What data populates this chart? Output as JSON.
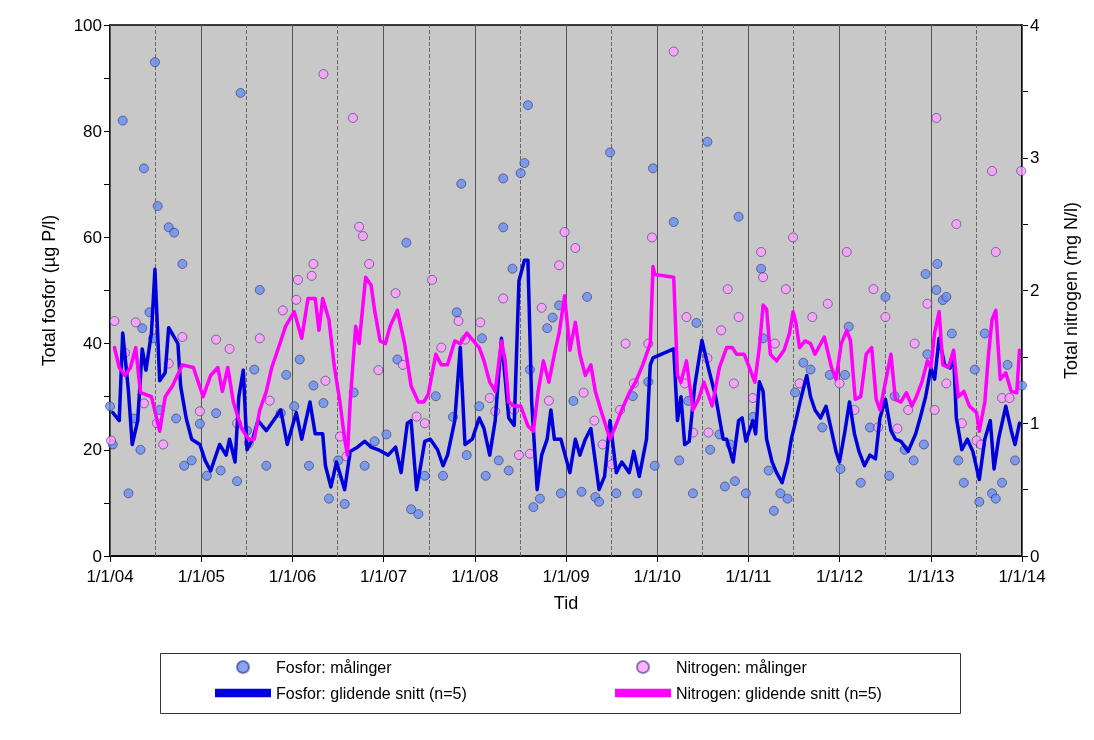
{
  "chart_data": {
    "type": "scatter",
    "xlabel": "Tid",
    "ylabel": "Total fosfor (µg P/l)",
    "y2label": "Total nitrogen (mg N/l)",
    "xlim": [
      "2004-01-01",
      "2014-01-01"
    ],
    "xticks": [
      {
        "value": "2004-01-01",
        "label": "1/1/04"
      },
      {
        "value": "2005-01-01",
        "label": "1/1/05"
      },
      {
        "value": "2006-01-01",
        "label": "1/1/06"
      },
      {
        "value": "2007-01-01",
        "label": "1/1/07"
      },
      {
        "value": "2008-01-01",
        "label": "1/1/08"
      },
      {
        "value": "2009-01-01",
        "label": "1/1/09"
      },
      {
        "value": "2010-01-01",
        "label": "1/1/10"
      },
      {
        "value": "2011-01-01",
        "label": "1/1/11"
      },
      {
        "value": "2012-01-01",
        "label": "1/1/12"
      },
      {
        "value": "2013-01-01",
        "label": "1/1/13"
      },
      {
        "value": "2014-01-01",
        "label": "1/1/14"
      }
    ],
    "ylim": [
      0,
      100
    ],
    "yticks": [
      0,
      {
        "value": 10,
        "label": null
      },
      20,
      {
        "value": 30,
        "label": null
      },
      40,
      {
        "value": 50,
        "label": null
      },
      60,
      {
        "value": 70,
        "label": null
      },
      80,
      {
        "value": 90,
        "label": null
      },
      100
    ],
    "y2lim": [
      0,
      4
    ],
    "y2ticks": [
      0,
      {
        "value": 0.5,
        "label": null
      },
      1,
      {
        "value": 1.5,
        "label": null
      },
      2,
      {
        "value": 2.5,
        "label": null
      },
      3,
      {
        "value": 3.5,
        "label": null
      },
      4
    ],
    "grid": "x",
    "legend": "bottom",
    "ref_lines": [
      {
        "axis": "x",
        "value": "2004-07-01",
        "line_style": "dashed",
        "color": "#666666"
      },
      {
        "axis": "x",
        "value": "2005-07-01",
        "line_style": "dashed",
        "color": "#666666"
      },
      {
        "axis": "x",
        "value": "2006-07-01",
        "line_style": "dashed",
        "color": "#666666"
      },
      {
        "axis": "x",
        "value": "2007-07-01",
        "line_style": "dashed",
        "color": "#666666"
      },
      {
        "axis": "x",
        "value": "2008-07-01",
        "line_style": "dashed",
        "color": "#666666"
      },
      {
        "axis": "x",
        "value": "2009-07-01",
        "line_style": "dashed",
        "color": "#666666"
      },
      {
        "axis": "x",
        "value": "2010-07-01",
        "line_style": "dashed",
        "color": "#666666"
      },
      {
        "axis": "x",
        "value": "2011-07-01",
        "line_style": "dashed",
        "color": "#666666"
      },
      {
        "axis": "x",
        "value": "2012-07-01",
        "line_style": "dashed",
        "color": "#666666"
      },
      {
        "axis": "x",
        "value": "2013-07-01",
        "line_style": "dashed",
        "color": "#666666"
      }
    ],
    "series": [
      {
        "name": "Fosfor: målinger",
        "marker": "circle",
        "color": "#6a8ff0",
        "x": [
          "2004-01-01",
          "2004-01-12",
          "2004-02-21",
          "2004-03-15",
          "2004-04-06",
          "2004-05-02",
          "2004-05-09",
          "2004-05-16",
          "2004-06-07",
          "2004-06-22",
          "2004-06-29",
          "2004-07-10",
          "2004-07-18",
          "2004-08-23",
          "2004-09-14",
          "2004-09-22",
          "2004-10-17",
          "2004-10-24",
          "2004-11-23",
          "2004-12-26",
          "2005-01-23",
          "2005-03-01",
          "2005-03-19",
          "2005-05-24",
          "2005-06-07",
          "2005-07-03",
          "2005-08-01",
          "2005-08-23",
          "2005-09-18",
          "2005-11-15",
          "2005-12-07",
          "2006-01-08",
          "2006-01-30",
          "2006-03-08",
          "2006-03-26",
          "2006-05-05",
          "2006-05-27",
          "2006-07-03",
          "2006-07-29",
          "2006-09-03",
          "2006-10-17",
          "2006-11-26",
          "2007-01-12",
          "2007-02-25",
          "2007-04-02",
          "2007-04-21",
          "2007-05-20",
          "2007-06-15",
          "2007-07-29",
          "2007-08-27",
          "2007-10-06",
          "2007-10-21",
          "2007-11-08",
          "2007-11-30",
          "2008-01-19",
          "2008-01-30",
          "2008-02-14",
          "2008-04-06",
          "2008-04-24",
          "2008-04-24",
          "2008-05-16",
          "2008-05-31",
          "2008-07-03",
          "2008-07-18",
          "2008-08-01",
          "2008-08-09",
          "2008-08-23",
          "2008-09-18",
          "2008-10-17",
          "2008-11-08",
          "2008-12-04",
          "2008-12-11",
          "2009-01-30",
          "2009-03-04",
          "2009-03-26",
          "2009-04-28",
          "2009-05-13",
          "2009-06-26",
          "2009-07-21",
          "2009-09-25",
          "2009-10-13",
          "2009-11-26",
          "2009-12-15",
          "2009-12-22",
          "2010-03-08",
          "2010-03-30",
          "2010-05-05",
          "2010-05-24",
          "2010-06-07",
          "2010-07-21",
          "2010-08-01",
          "2010-09-07",
          "2010-09-29",
          "2010-10-21",
          "2010-11-08",
          "2010-11-23",
          "2010-12-22",
          "2011-01-19",
          "2011-02-21",
          "2011-03-01",
          "2011-03-23",
          "2011-04-13",
          "2011-05-09",
          "2011-06-07",
          "2011-07-07",
          "2011-08-09",
          "2011-09-07",
          "2011-10-24",
          "2011-11-23",
          "2012-01-05",
          "2012-01-23",
          "2012-02-07",
          "2012-03-26",
          "2012-05-02",
          "2012-07-03",
          "2012-07-18",
          "2012-08-09",
          "2012-09-18",
          "2012-10-24",
          "2012-12-04",
          "2012-12-11",
          "2012-12-18",
          "2013-01-23",
          "2013-01-27",
          "2013-02-18",
          "2013-03-04",
          "2013-03-26",
          "2013-04-21",
          "2013-05-13",
          "2013-06-26",
          "2013-07-14",
          "2013-08-05",
          "2013-09-03",
          "2013-09-18",
          "2013-10-13",
          "2013-11-04",
          "2013-12-04",
          "2014-01-01"
        ],
        "values": [
          28.2,
          21,
          82,
          11.8,
          25.9,
          20,
          42.9,
          73,
          45.9,
          41,
          93,
          65.9,
          27.5,
          61.9,
          60.9,
          25.9,
          55,
          17,
          18,
          24.9,
          15.1,
          26.9,
          16.1,
          14.1,
          87.2,
          23.6,
          35.1,
          50.1,
          17,
          26.9,
          34.1,
          28.2,
          37,
          17,
          32.1,
          28.8,
          10.8,
          18,
          9.8,
          30.8,
          17,
          21.6,
          22.9,
          37,
          59,
          8.8,
          7.9,
          15.1,
          30.1,
          15.1,
          26.2,
          45.9,
          70.1,
          19,
          28.2,
          41,
          15.1,
          18,
          71.1,
          61.9,
          16.1,
          54.1,
          72.1,
          74,
          84.9,
          35.1,
          9.2,
          10.8,
          42.9,
          44.9,
          47.2,
          11.8,
          29.2,
          12.1,
          48.8,
          11.1,
          10.2,
          76,
          11.8,
          30.1,
          11.8,
          32.8,
          73,
          17,
          62.9,
          18,
          29.2,
          11.8,
          43.9,
          78,
          20,
          22.9,
          13.1,
          21,
          14.1,
          63.9,
          11.8,
          26.2,
          54.1,
          41,
          16.1,
          8.5,
          11.8,
          10.8,
          30.8,
          36.4,
          35.1,
          24.2,
          34.1,
          16.4,
          34.1,
          43.2,
          13.8,
          24.2,
          48.8,
          15.1,
          30.1,
          20,
          18,
          21,
          53.1,
          38,
          50.1,
          55,
          48.2,
          48.8,
          41.9,
          18,
          13.8,
          35.1,
          10.2,
          41.9,
          11.8,
          10.8,
          13.8,
          36,
          18,
          32.1
        ]
      },
      {
        "name": "Nitrogen: målinger",
        "marker": "circle",
        "color": "#ff9cff",
        "axis": "y2",
        "x": [
          "2004-01-05",
          "2004-01-19",
          "2004-03-01",
          "2004-04-13",
          "2004-05-16",
          "2004-07-07",
          "2004-08-01",
          "2004-08-23",
          "2004-10-17",
          "2004-12-26",
          "2005-03-01",
          "2005-04-24",
          "2005-05-24",
          "2005-07-10",
          "2005-08-23",
          "2005-10-02",
          "2005-11-23",
          "2006-01-16",
          "2006-01-23",
          "2006-03-19",
          "2006-03-26",
          "2006-05-05",
          "2006-05-13",
          "2006-07-10",
          "2006-08-05",
          "2006-08-31",
          "2006-09-25",
          "2006-10-10",
          "2006-11-04",
          "2006-12-11",
          "2007-02-18",
          "2007-03-19",
          "2007-05-13",
          "2007-06-15",
          "2007-07-14",
          "2007-08-20",
          "2007-10-28",
          "2007-11-23",
          "2008-01-23",
          "2008-03-01",
          "2008-03-23",
          "2008-04-24",
          "2008-06-07",
          "2008-06-26",
          "2008-08-09",
          "2008-09-25",
          "2008-10-24",
          "2008-12-04",
          "2008-12-26",
          "2009-02-07",
          "2009-03-12",
          "2009-04-24",
          "2009-05-27",
          "2009-07-03",
          "2009-08-05",
          "2009-08-27",
          "2009-09-29",
          "2009-11-26",
          "2009-12-11",
          "2010-03-08",
          "2010-04-21",
          "2010-04-28",
          "2010-05-24",
          "2010-07-21",
          "2010-07-25",
          "2010-09-14",
          "2010-10-10",
          "2010-11-04",
          "2010-11-23",
          "2011-01-19",
          "2011-02-21",
          "2011-03-01",
          "2011-04-17",
          "2011-05-31",
          "2011-06-29",
          "2011-07-25",
          "2011-09-14",
          "2011-11-15",
          "2012-01-01",
          "2012-01-30",
          "2012-03-01",
          "2012-05-16",
          "2012-06-04",
          "2012-07-03",
          "2012-08-20",
          "2012-10-02",
          "2012-10-28",
          "2012-12-18",
          "2013-01-16",
          "2013-01-23",
          "2013-03-04",
          "2013-04-13",
          "2013-05-05",
          "2013-07-03",
          "2013-07-21",
          "2013-09-03",
          "2013-09-18",
          "2013-10-13",
          "2013-11-12",
          "2013-12-29"
        ],
        "values": [
          0.87,
          1.77,
          1.53,
          1.76,
          1.15,
          1.0,
          0.84,
          1.45,
          1.65,
          1.09,
          1.63,
          1.56,
          1.0,
          0.85,
          1.64,
          1.17,
          1.85,
          1.93,
          2.08,
          2.11,
          2.2,
          3.63,
          1.32,
          0.9,
          0.75,
          3.3,
          2.48,
          2.41,
          2.2,
          1.4,
          1.98,
          1.44,
          1.05,
          1.0,
          2.08,
          1.57,
          1.77,
          1.63,
          1.76,
          1.19,
          1.09,
          1.94,
          1.1,
          0.76,
          0.77,
          1.87,
          1.17,
          2.19,
          2.44,
          2.32,
          1.23,
          1.02,
          0.84,
          0.69,
          1.1,
          1.6,
          1.3,
          1.6,
          2.4,
          3.8,
          1.3,
          1.8,
          0.93,
          1.49,
          0.93,
          1.7,
          2.01,
          1.3,
          1.8,
          1.19,
          2.29,
          2.1,
          1.6,
          2.01,
          2.4,
          1.3,
          1.8,
          1.9,
          1.3,
          2.29,
          1.1,
          2.01,
          0.97,
          1.8,
          0.96,
          1.1,
          1.6,
          1.9,
          1.1,
          3.3,
          1.3,
          2.5,
          1.0,
          0.87,
          0.84,
          2.9,
          2.29,
          1.19,
          1.19,
          2.9
        ]
      },
      {
        "name": "Fosfor: glidende snitt (n=5)",
        "type": "line",
        "marker": "none",
        "color": "#0000dd",
        "x": [
          "2004-01-12",
          "2004-02-07",
          "2004-02-21",
          "2004-03-15",
          "2004-03-30",
          "2004-04-21",
          "2004-05-09",
          "2004-05-24",
          "2004-06-15",
          "2004-06-29",
          "2004-07-18",
          "2004-08-09",
          "2004-08-23",
          "2004-09-29",
          "2004-10-10",
          "2004-11-01",
          "2004-11-23",
          "2004-12-26",
          "2005-01-16",
          "2005-02-07",
          "2005-03-15",
          "2005-04-10",
          "2005-04-24",
          "2005-05-16",
          "2005-05-31",
          "2005-06-18",
          "2005-07-03",
          "2005-07-25",
          "2005-08-16",
          "2005-09-18",
          "2005-10-17",
          "2005-11-15",
          "2005-12-11",
          "2006-01-16",
          "2006-02-07",
          "2006-03-12",
          "2006-04-02",
          "2006-05-02",
          "2006-05-13",
          "2006-06-04",
          "2006-06-26",
          "2006-07-29",
          "2006-08-20",
          "2006-09-18",
          "2006-10-17",
          "2006-11-12",
          "2006-12-11",
          "2007-01-19",
          "2007-02-18",
          "2007-03-12",
          "2007-04-06",
          "2007-04-21",
          "2007-05-13",
          "2007-06-15",
          "2007-07-07",
          "2007-08-05",
          "2007-08-27",
          "2007-09-14",
          "2007-10-13",
          "2007-11-04",
          "2007-11-08",
          "2007-11-23",
          "2007-12-22",
          "2008-01-19",
          "2008-02-07",
          "2008-03-01",
          "2008-03-23",
          "2008-04-17",
          "2008-05-02",
          "2008-05-16",
          "2008-06-07",
          "2008-06-26",
          "2008-07-18",
          "2008-08-01",
          "2008-08-16",
          "2008-09-07",
          "2008-09-25",
          "2008-10-17",
          "2008-11-01",
          "2008-11-15",
          "2008-12-11",
          "2009-01-01",
          "2009-01-16",
          "2009-02-07",
          "2009-02-25",
          "2009-03-19",
          "2009-04-10",
          "2009-05-13",
          "2009-06-04",
          "2009-06-26",
          "2009-07-21",
          "2009-08-12",
          "2009-09-11",
          "2009-09-29",
          "2009-10-21",
          "2009-11-19",
          "2009-12-04",
          "2009-12-15",
          "2010-03-08",
          "2010-03-23",
          "2010-04-06",
          "2010-04-21",
          "2010-05-09",
          "2010-05-31",
          "2010-06-29",
          "2010-07-25",
          "2010-08-23",
          "2010-09-22",
          "2010-10-06",
          "2010-11-01",
          "2010-11-23",
          "2010-12-07",
          "2010-12-22",
          "2011-01-05",
          "2011-01-19",
          "2011-01-30",
          "2011-02-14",
          "2011-03-01",
          "2011-03-15",
          "2011-04-06",
          "2011-04-24",
          "2011-05-16",
          "2011-06-07",
          "2011-06-22",
          "2011-07-10",
          "2011-08-01",
          "2011-08-23",
          "2011-09-07",
          "2011-09-25",
          "2011-10-17",
          "2011-11-08",
          "2011-11-30",
          "2011-12-18",
          "2012-01-01",
          "2012-01-23",
          "2012-02-10",
          "2012-03-01",
          "2012-03-19",
          "2012-04-10",
          "2012-05-02",
          "2012-05-24",
          "2012-06-11",
          "2012-07-03",
          "2012-07-25",
          "2012-08-12",
          "2012-09-03",
          "2012-10-02",
          "2012-11-01",
          "2012-11-19",
          "2012-12-11",
          "2013-01-01",
          "2013-01-16",
          "2013-02-03",
          "2013-02-25",
          "2013-03-19",
          "2013-04-02",
          "2013-04-13",
          "2013-05-05",
          "2013-05-27",
          "2013-06-18",
          "2013-07-14",
          "2013-08-05",
          "2013-08-27",
          "2013-09-11",
          "2013-09-29",
          "2013-10-28",
          "2013-11-19",
          "2013-12-04",
          "2013-12-22"
        ],
        "values": [
          27,
          25.5,
          42,
          31,
          21,
          25.5,
          39,
          35,
          42,
          54,
          33,
          34.5,
          43,
          40,
          32,
          26,
          22,
          21,
          18,
          16,
          21,
          19,
          22,
          17.7,
          30,
          35,
          20,
          22,
          25.5,
          23.6,
          25.5,
          27.5,
          21,
          27,
          22,
          29,
          23,
          23,
          17,
          13,
          17.7,
          12.5,
          19.7,
          20.5,
          21.6,
          20.5,
          20,
          19,
          20.5,
          15.7,
          25,
          25.5,
          12.5,
          21.6,
          22,
          20,
          17,
          19,
          25.5,
          39.3,
          35,
          21,
          22,
          26,
          24,
          19,
          25.5,
          41,
          33.3,
          26,
          24.6,
          51.8,
          55.7,
          55.7,
          29,
          12.5,
          19,
          22,
          27.5,
          22,
          22,
          18.3,
          15.7,
          22,
          19,
          22,
          24,
          12.5,
          15,
          25.5,
          15.7,
          17.7,
          15.7,
          19.7,
          15,
          22,
          36,
          37.3,
          39,
          25.5,
          30,
          21,
          21.6,
          32,
          40.6,
          35.4,
          30,
          22,
          22,
          17.7,
          25.5,
          26,
          21.6,
          23.6,
          25.5,
          23,
          32.8,
          31,
          22,
          17.7,
          15.7,
          13.8,
          17.7,
          22,
          25.5,
          30,
          34,
          30,
          27.5,
          26,
          28.2,
          23.6,
          19.7,
          17.7,
          23.6,
          29,
          23,
          19.7,
          17,
          19,
          18.3,
          26,
          29.5,
          23.6,
          22,
          21.6,
          19.7,
          23,
          26,
          30,
          35.4,
          33.3,
          41,
          36,
          35.4,
          38,
          26,
          20,
          22,
          19.7,
          14.4,
          22,
          25.5,
          16.4,
          22,
          28.2,
          23.6,
          21,
          25
        ]
      },
      {
        "name": "Nitrogen: glidende snitt (n=5)",
        "type": "line",
        "marker": "none",
        "color": "#ff00ff",
        "axis": "y2",
        "x": [
          "2004-01-19",
          "2004-02-07",
          "2004-03-01",
          "2004-03-23",
          "2004-04-13",
          "2004-05-02",
          "2004-06-15",
          "2004-07-18",
          "2004-08-09",
          "2004-09-07",
          "2004-10-17",
          "2004-11-30",
          "2005-01-08",
          "2005-02-07",
          "2005-03-08",
          "2005-03-26",
          "2005-04-17",
          "2005-05-09",
          "2005-06-11",
          "2005-07-10",
          "2005-08-01",
          "2005-08-23",
          "2005-09-18",
          "2005-10-10",
          "2005-11-15",
          "2005-12-04",
          "2006-01-08",
          "2006-02-07",
          "2006-03-04",
          "2006-04-02",
          "2006-04-17",
          "2006-05-02",
          "2006-05-27",
          "2006-06-18",
          "2006-07-10",
          "2006-07-29",
          "2006-08-09",
          "2006-08-20",
          "2006-09-11",
          "2006-09-25",
          "2006-10-21",
          "2006-11-12",
          "2006-11-26",
          "2006-12-18",
          "2007-01-08",
          "2007-01-27",
          "2007-02-25",
          "2007-03-26",
          "2007-04-21",
          "2007-05-20",
          "2007-06-11",
          "2007-06-29",
          "2007-07-29",
          "2007-08-20",
          "2007-09-14",
          "2007-10-13",
          "2007-11-04",
          "2007-11-30",
          "2008-01-05",
          "2008-01-19",
          "2008-02-07",
          "2008-03-01",
          "2008-03-23",
          "2008-04-17",
          "2008-05-02",
          "2008-05-16",
          "2008-06-07",
          "2008-07-03",
          "2008-08-01",
          "2008-08-23",
          "2008-09-11",
          "2008-10-02",
          "2008-10-24",
          "2008-11-15",
          "2008-12-04",
          "2008-12-26",
          "2009-01-16",
          "2009-02-07",
          "2009-02-25",
          "2009-03-19",
          "2009-04-10",
          "2009-04-28",
          "2009-05-20",
          "2009-06-26",
          "2009-07-14",
          "2009-08-12",
          "2009-09-11",
          "2009-10-06",
          "2009-11-04",
          "2009-12-04",
          "2009-12-15",
          "2009-12-22",
          "2010-03-08",
          "2010-03-23",
          "2010-04-06",
          "2010-04-28",
          "2010-05-24",
          "2010-06-15",
          "2010-07-07",
          "2010-08-09",
          "2010-09-07",
          "2010-10-06",
          "2010-10-28",
          "2010-11-15",
          "2010-12-15",
          "2011-01-05",
          "2011-01-27",
          "2011-02-14",
          "2011-03-01",
          "2011-03-15",
          "2011-03-30",
          "2011-04-24",
          "2011-05-24",
          "2011-06-15",
          "2011-06-29",
          "2011-07-10",
          "2011-07-25",
          "2011-08-16",
          "2011-09-07",
          "2011-09-25",
          "2011-11-01",
          "2011-11-30",
          "2011-12-18",
          "2012-01-08",
          "2012-01-30",
          "2012-02-14",
          "2012-03-04",
          "2012-03-26",
          "2012-04-17",
          "2012-05-09",
          "2012-05-27",
          "2012-06-11",
          "2012-07-03",
          "2012-07-25",
          "2012-08-12",
          "2012-09-03",
          "2012-09-25",
          "2012-10-17",
          "2012-11-04",
          "2012-11-26",
          "2012-12-18",
          "2013-01-01",
          "2013-01-16",
          "2013-02-03",
          "2013-02-18",
          "2013-03-12",
          "2013-04-02",
          "2013-04-21",
          "2013-05-13",
          "2013-06-04",
          "2013-07-03",
          "2013-07-14",
          "2013-08-05",
          "2013-08-20",
          "2013-09-03",
          "2013-09-18",
          "2013-10-06",
          "2013-10-28",
          "2013-11-19",
          "2013-12-11",
          "2013-12-22"
        ],
        "values": [
          1.57,
          1.42,
          1.36,
          1.42,
          1.57,
          1.23,
          1.2,
          0.94,
          1.2,
          1.28,
          1.44,
          1.42,
          1.2,
          1.36,
          1.42,
          1.24,
          1.42,
          1.16,
          0.96,
          0.88,
          0.88,
          1.1,
          1.24,
          1.42,
          1.62,
          1.73,
          1.84,
          1.64,
          1.94,
          1.94,
          1.7,
          1.94,
          1.78,
          1.42,
          1.16,
          0.88,
          0.76,
          1.16,
          1.73,
          1.6,
          2.1,
          2.04,
          1.85,
          1.62,
          1.6,
          1.73,
          1.85,
          1.6,
          1.28,
          1.16,
          1.16,
          1.22,
          1.52,
          1.44,
          1.44,
          1.62,
          1.6,
          1.68,
          1.6,
          1.57,
          1.47,
          1.31,
          1.24,
          1.62,
          1.47,
          1.16,
          1.13,
          1.13,
          0.98,
          0.94,
          1.24,
          1.47,
          1.31,
          1.52,
          1.68,
          1.96,
          1.55,
          1.76,
          1.52,
          1.36,
          1.44,
          1.24,
          1.1,
          0.88,
          0.96,
          1.1,
          1.23,
          1.31,
          1.44,
          1.6,
          2.18,
          2.12,
          2.1,
          1.36,
          1.31,
          1.47,
          1.1,
          1.18,
          1.31,
          1.13,
          1.42,
          1.57,
          1.57,
          1.52,
          1.52,
          1.42,
          1.31,
          1.57,
          1.89,
          1.86,
          1.52,
          1.47,
          1.55,
          1.68,
          1.84,
          1.76,
          1.57,
          1.62,
          1.6,
          1.52,
          1.65,
          1.42,
          1.33,
          1.6,
          1.7,
          1.62,
          1.18,
          1.2,
          1.52,
          1.57,
          1.18,
          1.1,
          1.31,
          1.52,
          1.18,
          1.16,
          1.23,
          1.13,
          1.2,
          1.31,
          1.47,
          1.42,
          1.68,
          1.84,
          1.44,
          1.42,
          1.55,
          1.2,
          1.24,
          1.13,
          1.08,
          0.94,
          1.16,
          1.52,
          1.78,
          1.85,
          1.33,
          1.38,
          1.24,
          1.23,
          1.55
        ]
      }
    ]
  }
}
